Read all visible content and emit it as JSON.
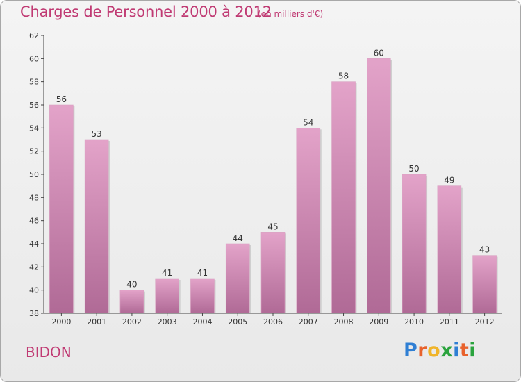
{
  "header": {
    "title": "Charges de Personnel 2000 à 2012",
    "subtitle": "(en milliers d'€)"
  },
  "footer": {
    "location": "BIDON",
    "logo": "Proxiti",
    "logo_colors": [
      "#2f7fd4",
      "#e8622c",
      "#f0b429",
      "#2aa33d",
      "#2f7fd4",
      "#e8622c",
      "#2aa33d"
    ]
  },
  "colors": {
    "bar_top": "#e3a3c9",
    "bar_bottom": "#b06a96",
    "accent": "#c03a73",
    "axis": "#444444"
  },
  "chart_data": {
    "type": "bar",
    "categories": [
      "2000",
      "2001",
      "2002",
      "2003",
      "2004",
      "2005",
      "2006",
      "2007",
      "2008",
      "2009",
      "2010",
      "2011",
      "2012"
    ],
    "values": [
      56,
      53,
      40,
      41,
      41,
      44,
      45,
      54,
      58,
      60,
      50,
      49,
      43
    ],
    "ylim": [
      38,
      62
    ],
    "yticks": [
      38,
      40,
      42,
      44,
      46,
      48,
      50,
      52,
      54,
      56,
      58,
      60,
      62
    ],
    "grid": false,
    "data_labels": true
  }
}
